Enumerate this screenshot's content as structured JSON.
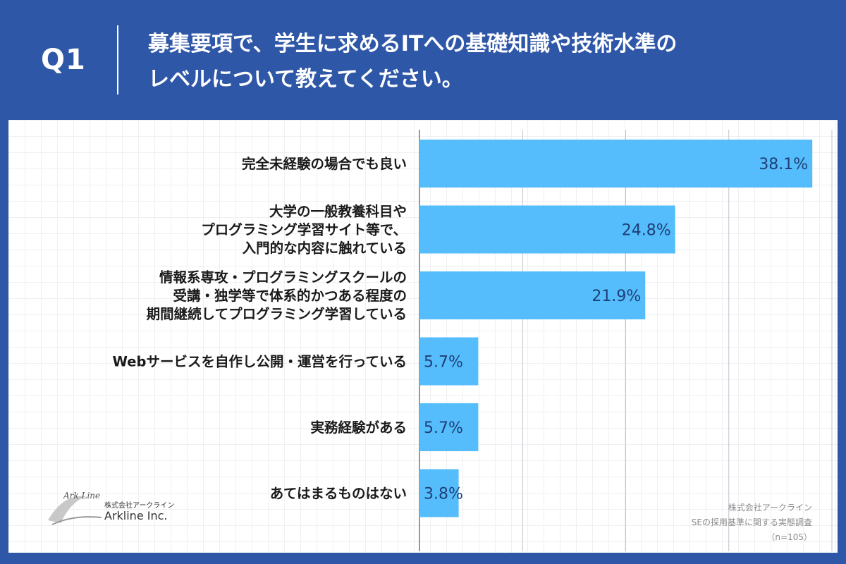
{
  "header": {
    "question_number": "Q1",
    "title_line1": "募集要項で、学生に求めるITへの基礎知識や技術水準の",
    "title_line2": "レベルについて教えてください。"
  },
  "colors": {
    "background": "#2f57a8",
    "bar": "#55bdfb",
    "value_text": "#1f3f78"
  },
  "chart_data": {
    "type": "bar",
    "orientation": "horizontal",
    "unit": "%",
    "xlim": [
      0,
      40
    ],
    "grid": true,
    "categories": [
      [
        "完全未経験の場合でも良い"
      ],
      [
        "大学の一般教養科目や",
        "プログラミング学習サイト等で、",
        "入門的な内容に触れている"
      ],
      [
        "情報系専攻・プログラミングスクールの",
        "受講・独学等で体系的かつある程度の",
        "期間継続してプログラミング学習している"
      ],
      [
        "Webサービスを自作し公開・運営を行っている"
      ],
      [
        "実務経験がある"
      ],
      [
        "あてはまるものはない"
      ]
    ],
    "values": [
      38.1,
      24.8,
      21.9,
      5.7,
      5.7,
      3.8
    ],
    "value_labels": [
      "38.1%",
      "24.8%",
      "21.9%",
      "5.7%",
      "5.7%",
      "3.8%"
    ]
  },
  "logo": {
    "mark_text": "Ark Line",
    "company_jp": "株式会社アークライン",
    "company_en": "Arkline Inc."
  },
  "source": {
    "line1": "株式会社アークライン",
    "line2": "SEの採用基準に関する実態調査",
    "line3": "（n=105）"
  }
}
